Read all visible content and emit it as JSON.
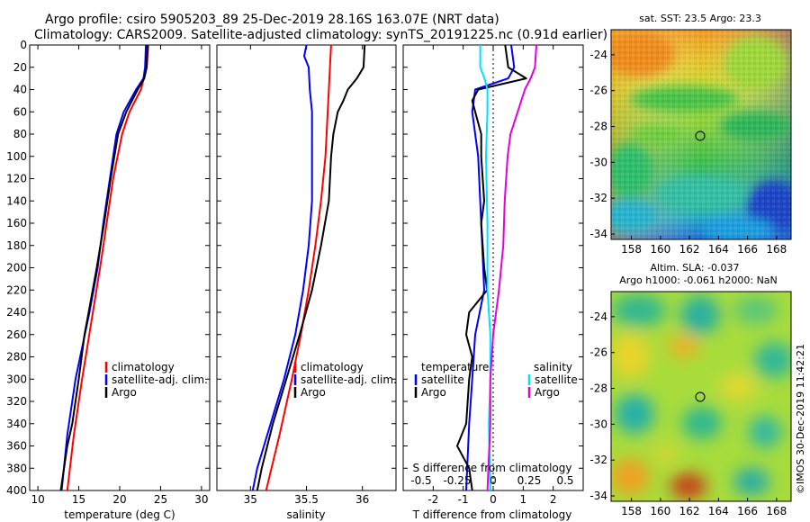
{
  "header": {
    "line1": "Argo profile: csiro 5905203_89 25-Dec-2019 28.16S 163.07E (NRT data)",
    "line2": "Climatology: CARS2009. Satellite-adjusted climatology: synTS_20191225.nc (0.91d earlier)"
  },
  "colors": {
    "climatology": "#ff0000",
    "satellite": "#0000ff",
    "argo": "#000000",
    "sat_salinity": "#00e0ff",
    "argo_salinity": "#e000e0"
  },
  "depth_axis": {
    "min": 0,
    "max": 400,
    "ticks": [
      0,
      20,
      40,
      60,
      80,
      100,
      120,
      140,
      160,
      180,
      200,
      220,
      240,
      260,
      280,
      300,
      320,
      340,
      360,
      380,
      400
    ]
  },
  "chart_data": [
    {
      "type": "line",
      "id": "temperature",
      "xlabel": "temperature (deg C)",
      "xlim": [
        9,
        31
      ],
      "xticks": [
        10,
        15,
        20,
        25,
        30
      ],
      "ylim": [
        0,
        400
      ],
      "legend": {
        "climatology": "climatology",
        "satellite": "satellite-adj. clim.",
        "argo": "Argo"
      },
      "series": [
        {
          "name": "climatology",
          "color": "#ff0000",
          "depth": [
            0,
            20,
            40,
            60,
            80,
            120,
            160,
            200,
            250,
            300,
            350,
            400
          ],
          "values": [
            23.5,
            23.3,
            22.6,
            21.2,
            20.3,
            19.2,
            18.4,
            17.6,
            16.5,
            15.4,
            14.4,
            13.6
          ]
        },
        {
          "name": "satellite-adj. clim.",
          "color": "#0000ff",
          "depth": [
            0,
            20,
            30,
            40,
            60,
            80,
            120,
            160,
            200,
            240,
            300,
            350,
            400
          ],
          "values": [
            23.2,
            23.1,
            22.9,
            22.0,
            20.5,
            19.6,
            18.8,
            18.0,
            17.3,
            16.3,
            14.6,
            13.6,
            12.9
          ]
        },
        {
          "name": "Argo",
          "color": "#000000",
          "depth": [
            0,
            20,
            30,
            40,
            60,
            80,
            120,
            160,
            200,
            240,
            260,
            300,
            340,
            360,
            400
          ],
          "values": [
            23.4,
            23.3,
            23.0,
            22.2,
            20.8,
            19.8,
            18.9,
            18.1,
            17.2,
            16.2,
            15.7,
            15.0,
            14.2,
            13.6,
            12.8
          ]
        }
      ]
    },
    {
      "type": "line",
      "id": "salinity",
      "xlabel": "salinity",
      "xlim": [
        34.7,
        36.3
      ],
      "xticks": [
        35,
        35.5,
        36
      ],
      "xtick_labels": [
        "35",
        "35.5",
        "36"
      ],
      "ylim": [
        0,
        400
      ],
      "legend": {
        "climatology": "climatology",
        "satellite": "satellite-adj. clim.",
        "argo": "Argo"
      },
      "series": [
        {
          "name": "climatology",
          "color": "#ff0000",
          "depth": [
            0,
            20,
            40,
            60,
            80,
            100,
            140,
            180,
            220,
            260,
            300,
            350,
            400
          ],
          "values": [
            35.72,
            35.71,
            35.7,
            35.69,
            35.68,
            35.67,
            35.63,
            35.58,
            35.52,
            35.45,
            35.37,
            35.26,
            35.14
          ]
        },
        {
          "name": "satellite-adj. clim.",
          "color": "#0000ff",
          "depth": [
            0,
            10,
            20,
            40,
            60,
            80,
            100,
            140,
            180,
            220,
            260,
            300,
            340,
            380,
            400
          ],
          "values": [
            35.5,
            35.48,
            35.52,
            35.53,
            35.55,
            35.55,
            35.55,
            35.55,
            35.52,
            35.47,
            35.4,
            35.3,
            35.18,
            35.06,
            35.02
          ]
        },
        {
          "name": "Argo",
          "color": "#000000",
          "depth": [
            0,
            20,
            30,
            40,
            50,
            60,
            80,
            100,
            140,
            180,
            220,
            260,
            300,
            340,
            380,
            400
          ],
          "values": [
            36.02,
            36.01,
            35.95,
            35.87,
            35.83,
            35.78,
            35.74,
            35.72,
            35.7,
            35.63,
            35.55,
            35.44,
            35.32,
            35.2,
            35.1,
            35.06
          ]
        }
      ]
    },
    {
      "type": "line",
      "id": "difference",
      "xlabel": "T difference from climatology",
      "xlim": [
        -3,
        3
      ],
      "xticks": [
        -2,
        -1,
        0,
        1,
        2
      ],
      "ylim": [
        0,
        400
      ],
      "top_label": "S difference from climatology",
      "top_xticks": [
        -0.5,
        -0.25,
        0,
        0.25,
        0.5
      ],
      "top_xtick_labels": [
        "-0.5",
        "-0.25",
        "0",
        "0.25",
        "0.5"
      ],
      "legend": {
        "left_title": "temperature",
        "right_title": "salinity",
        "satellite": "satellite",
        "argo": "Argo"
      },
      "series": [
        {
          "name": "T satellite",
          "color": "#0000ff",
          "depth": [
            0,
            20,
            30,
            40,
            60,
            100,
            160,
            220,
            260,
            300,
            340,
            400
          ],
          "values": [
            0.6,
            0.7,
            0.5,
            -0.6,
            -0.7,
            -0.5,
            -0.4,
            -0.3,
            -0.6,
            -0.7,
            -0.8,
            -0.9
          ]
        },
        {
          "name": "T Argo",
          "color": "#000000",
          "depth": [
            0,
            20,
            30,
            40,
            50,
            60,
            80,
            100,
            140,
            160,
            200,
            220,
            240,
            260,
            280,
            300,
            340,
            360,
            380,
            400
          ],
          "values": [
            0.4,
            0.5,
            1.1,
            -0.5,
            -0.7,
            -0.6,
            -0.4,
            -0.4,
            -0.3,
            -0.4,
            -0.3,
            -0.2,
            -0.8,
            -0.9,
            -0.7,
            -0.8,
            -0.9,
            -1.2,
            -0.8,
            -0.7
          ]
        },
        {
          "name": "S satellite",
          "color": "#00e0ff",
          "depth": [
            0,
            20,
            30,
            40,
            60,
            100,
            160,
            220,
            260,
            300,
            340,
            400
          ],
          "values": [
            -0.09,
            -0.09,
            -0.06,
            -0.04,
            -0.04,
            -0.05,
            -0.04,
            -0.04,
            -0.02,
            -0.02,
            -0.03,
            -0.02
          ]
        },
        {
          "name": "S Argo",
          "color": "#e000e0",
          "depth": [
            0,
            20,
            30,
            40,
            60,
            80,
            100,
            140,
            180,
            220,
            260,
            300,
            340,
            400
          ],
          "values": [
            0.3,
            0.29,
            0.26,
            0.22,
            0.17,
            0.12,
            0.1,
            0.08,
            0.07,
            0.04,
            0.0,
            -0.02,
            -0.02,
            -0.04
          ]
        }
      ]
    }
  ],
  "maps": {
    "sst": {
      "title": "sat. SST: 23.5 Argo: 23.3",
      "lat_ticks": [
        -24,
        -26,
        -28,
        -30,
        -32,
        -34
      ],
      "lon_ticks": [
        158,
        160,
        162,
        164,
        166,
        168
      ]
    },
    "sla": {
      "title_line1": "Altim. SLA: -0.037",
      "title_line2": "Argo h1000: -0.061 h2000: NaN",
      "lat_ticks": [
        -24,
        -26,
        -28,
        -30,
        -32,
        -34
      ],
      "lon_ticks": [
        158,
        160,
        162,
        164,
        166,
        168
      ]
    }
  },
  "footer": {
    "stamp": "©IMOS 30-Dec-2019 11:42:21"
  }
}
